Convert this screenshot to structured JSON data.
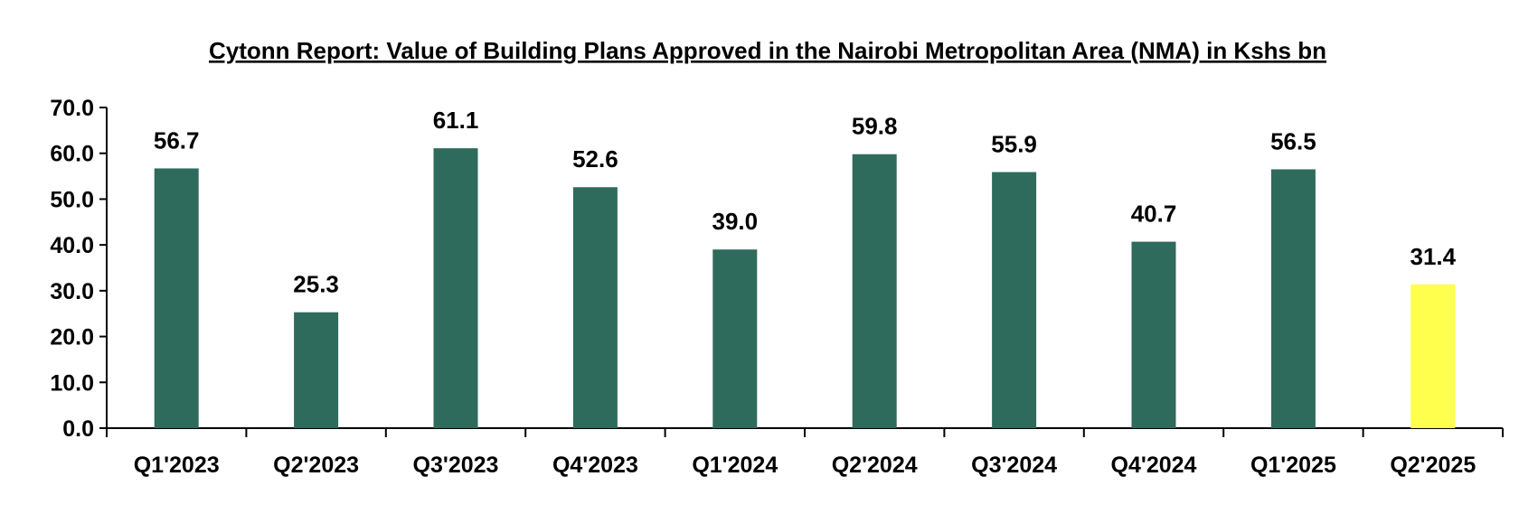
{
  "chart_data": {
    "type": "bar",
    "title": "Cytonn Report: Value of Building Plans Approved in the Nairobi Metropolitan Area (NMA) in Kshs bn",
    "xlabel": "",
    "ylabel": "",
    "categories": [
      "Q1'2023",
      "Q2'2023",
      "Q3'2023",
      "Q4'2023",
      "Q1'2024",
      "Q2'2024",
      "Q3'2024",
      "Q4'2024",
      "Q1'2025",
      "Q2'2025"
    ],
    "values": [
      56.7,
      25.3,
      61.1,
      52.6,
      39.0,
      59.8,
      55.9,
      40.7,
      56.5,
      31.4
    ],
    "data_labels": [
      "56.7",
      "25.3",
      "61.1",
      "52.6",
      "39.0",
      "59.8",
      "55.9",
      "40.7",
      "56.5",
      "31.4"
    ],
    "yticks": [
      "0.0",
      "10.0",
      "20.0",
      "30.0",
      "40.0",
      "50.0",
      "60.0",
      "70.0"
    ],
    "ylim": [
      0,
      70
    ],
    "grid": false,
    "legend": "none",
    "colors": {
      "bar": "#2e6b5c",
      "highlight": "#ffff4d",
      "axis": "#000000"
    },
    "highlight_categories": [
      "Q2'2025"
    ]
  }
}
